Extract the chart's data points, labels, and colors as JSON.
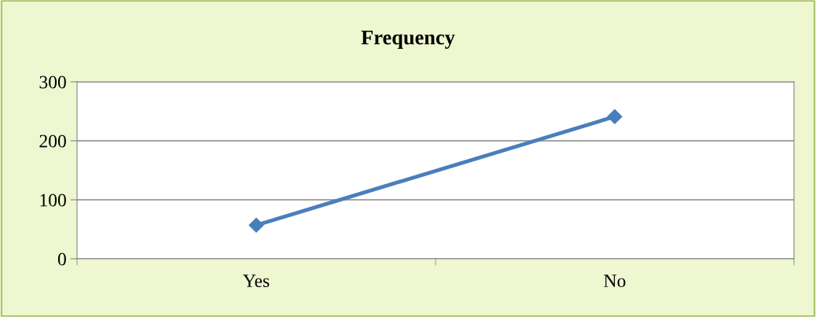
{
  "chart_data": {
    "type": "line",
    "title": "Frequency",
    "categories": [
      "Yes",
      "No"
    ],
    "series": [
      {
        "color": "#4a7ebb",
        "values": [
          57,
          241
        ]
      }
    ],
    "ylim": [
      0,
      300
    ],
    "yticks": [
      0,
      100,
      200,
      300
    ],
    "grid": "y",
    "marker": "diamond",
    "line_style": "solid"
  }
}
